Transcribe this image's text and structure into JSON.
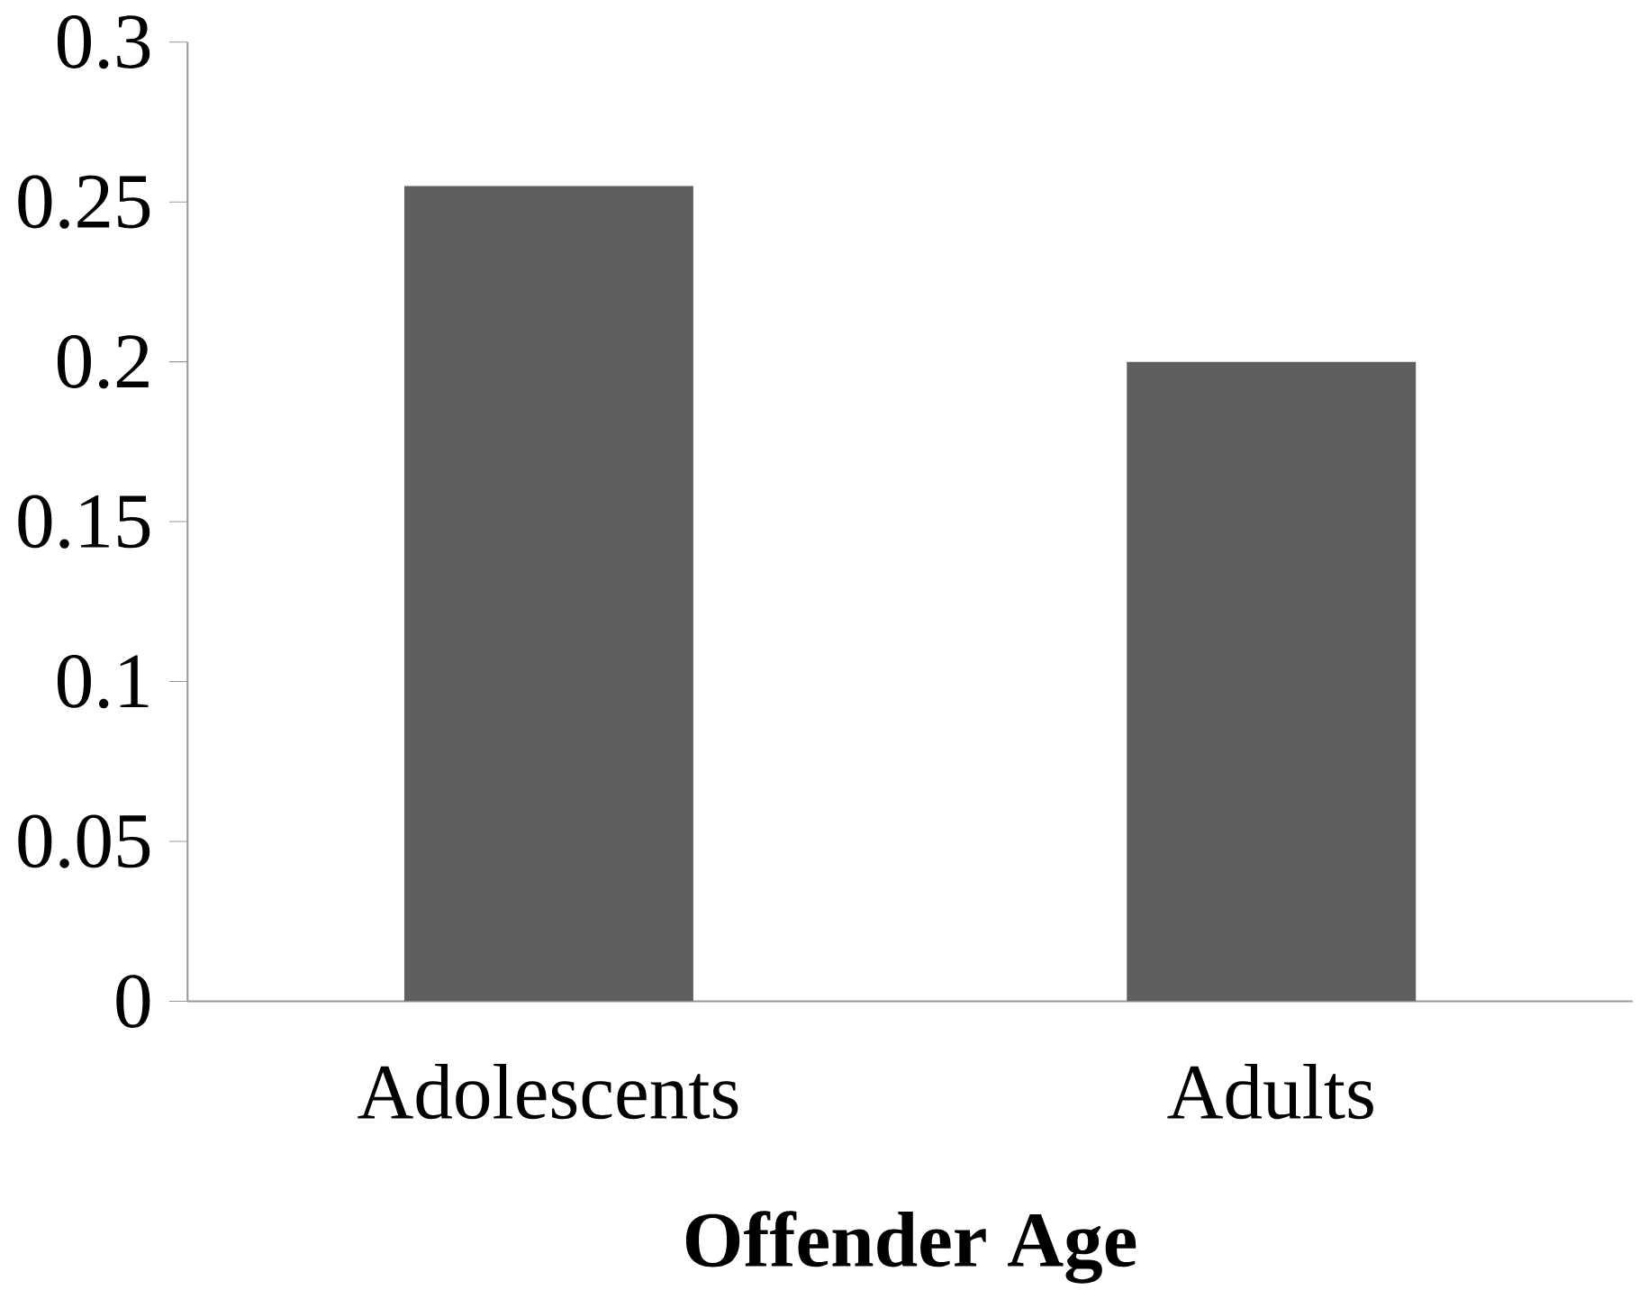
{
  "chart_data": {
    "type": "bar",
    "xlabel": "Offender Age",
    "categories": [
      "Adolescents",
      "Adults"
    ],
    "values": [
      0.255,
      0.2
    ],
    "color": "#5f5f5f",
    "ylim": [
      0,
      0.3
    ],
    "yticks": [
      0,
      0.05,
      0.1,
      0.15,
      0.2,
      0.25,
      0.3
    ]
  }
}
